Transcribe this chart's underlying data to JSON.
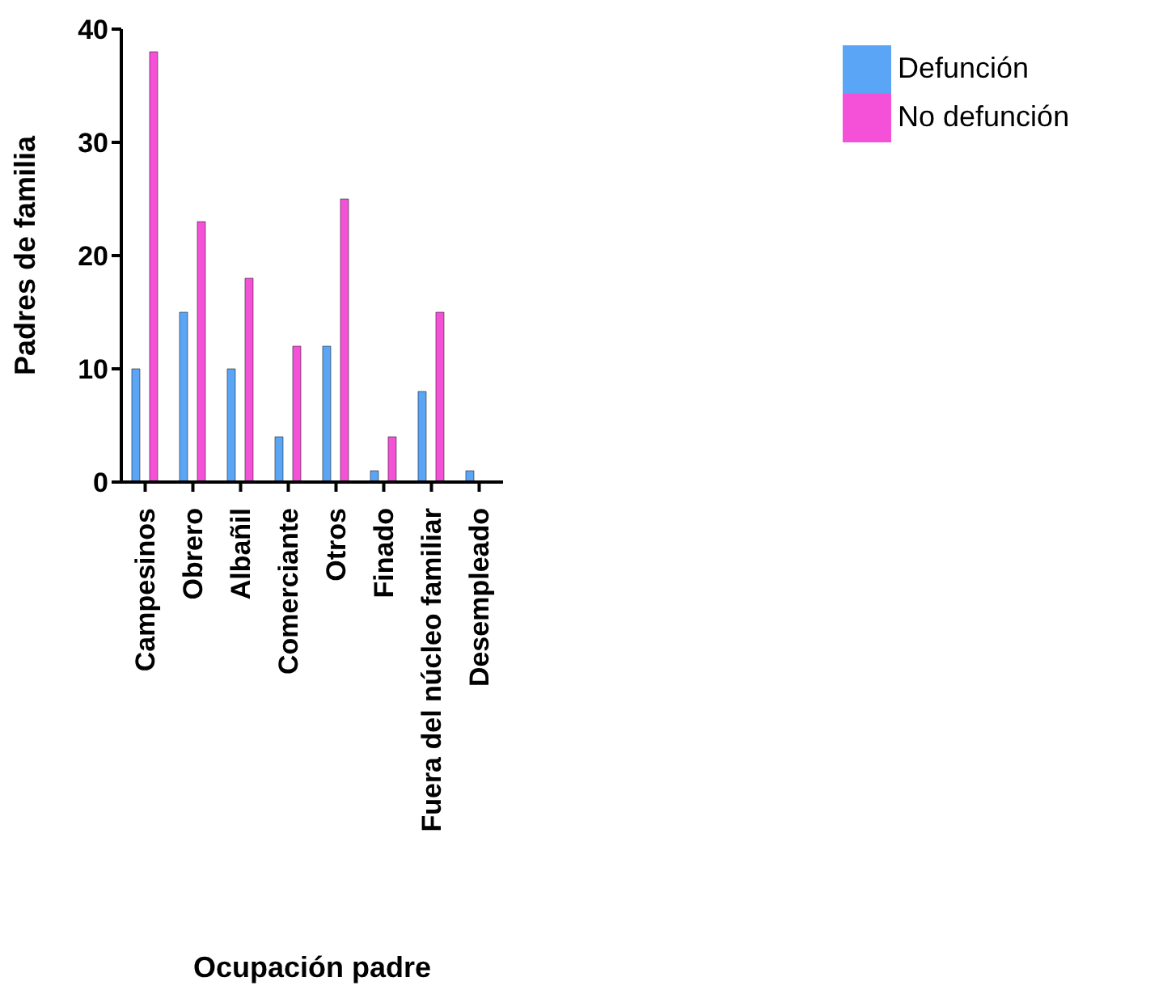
{
  "chart_data": {
    "type": "bar",
    "xlabel": "Ocupación padre",
    "ylabel": "Padres de familia",
    "categories": [
      "Campesinos",
      "Obrero",
      "Albañil",
      "Comerciante",
      "Otros",
      "Finado",
      "Fuera del núcleo familiar",
      "Desempleado"
    ],
    "series": [
      {
        "name": "Defunción",
        "color": "#5aa5f5",
        "values": [
          10,
          15,
          10,
          4,
          12,
          1,
          8,
          1
        ]
      },
      {
        "name": "No defunción",
        "color": "#f550d8",
        "values": [
          38,
          23,
          18,
          12,
          25,
          4,
          15,
          0
        ]
      }
    ],
    "ylim": [
      0,
      40
    ],
    "yticks": [
      0,
      10,
      20,
      30,
      40
    ],
    "grid": false,
    "legend": "top right"
  }
}
